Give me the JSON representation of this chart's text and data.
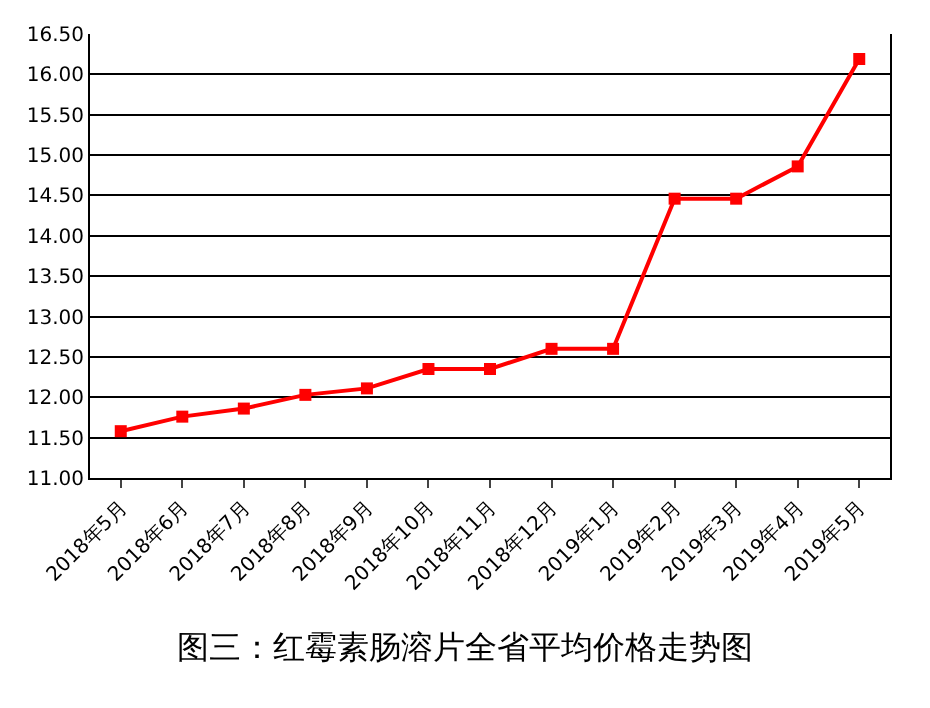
{
  "chart_data": {
    "type": "line",
    "title": "图三：红霉素肠溶片全省平均价格走势图",
    "categories": [
      "2018年5月",
      "2018年6月",
      "2018年7月",
      "2018年8月",
      "2018年9月",
      "2018年10月",
      "2018年11月",
      "2018年12月",
      "2019年1月",
      "2019年2月",
      "2019年3月",
      "2019年4月",
      "2019年5月"
    ],
    "series": [
      {
        "color": "#ff0000",
        "values": [
          11.58,
          11.76,
          11.86,
          12.03,
          12.11,
          12.35,
          12.35,
          12.6,
          12.6,
          14.46,
          14.46,
          14.86,
          16.19
        ]
      }
    ],
    "ylim": [
      11,
      16.5
    ],
    "yticks": [
      {
        "value": 11,
        "label": "11.00"
      },
      {
        "value": 11.5,
        "label": "11.50"
      },
      {
        "value": 12,
        "label": "12.00"
      },
      {
        "value": 12.5,
        "label": "12.50"
      },
      {
        "value": 13,
        "label": "13.00"
      },
      {
        "value": 13.5,
        "label": "13.50"
      },
      {
        "value": 14,
        "label": "14.00"
      },
      {
        "value": 14.5,
        "label": "14.50"
      },
      {
        "value": 15,
        "label": "15.00"
      },
      {
        "value": 15.5,
        "label": "15.50"
      },
      {
        "value": 16,
        "label": "16.00"
      },
      {
        "value": 16.5,
        "label": "16.50"
      }
    ],
    "grid": "y",
    "legend": false,
    "marker": "square",
    "line_style": "solid"
  }
}
